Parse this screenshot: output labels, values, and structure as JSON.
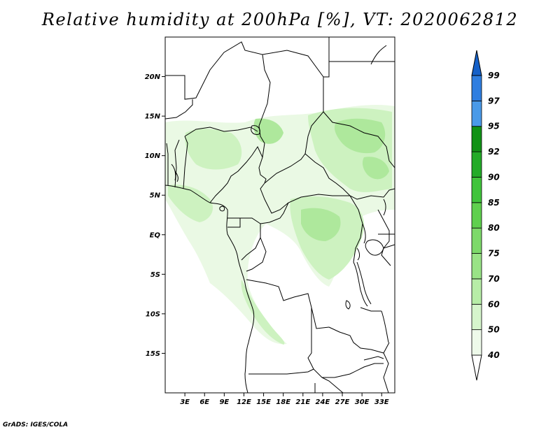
{
  "title": "Relative humidity at 200hPa [%], VT: 2020062812",
  "credit": "GrADS: IGES/COLA",
  "map": {
    "lon_range": [
      0,
      35
    ],
    "lat_range": [
      -20,
      25
    ],
    "lat_ticks": [
      {
        "value": 20,
        "label": "20N"
      },
      {
        "value": 15,
        "label": "15N"
      },
      {
        "value": 10,
        "label": "10N"
      },
      {
        "value": 5,
        "label": "5N"
      },
      {
        "value": 0,
        "label": "EQ"
      },
      {
        "value": -5,
        "label": "5S"
      },
      {
        "value": -10,
        "label": "10S"
      },
      {
        "value": -15,
        "label": "15S"
      }
    ],
    "lon_ticks": [
      {
        "value": 3,
        "label": "3E"
      },
      {
        "value": 6,
        "label": "6E"
      },
      {
        "value": 9,
        "label": "9E"
      },
      {
        "value": 12,
        "label": "12E"
      },
      {
        "value": 15,
        "label": "15E"
      },
      {
        "value": 18,
        "label": "18E"
      },
      {
        "value": 21,
        "label": "21E"
      },
      {
        "value": 24,
        "label": "24E"
      },
      {
        "value": 27,
        "label": "27E"
      },
      {
        "value": 30,
        "label": "30E"
      },
      {
        "value": 33,
        "label": "33E"
      }
    ]
  },
  "colorbar": {
    "levels": [
      "40",
      "50",
      "60",
      "70",
      "75",
      "80",
      "85",
      "90",
      "92",
      "95",
      "97",
      "99"
    ],
    "colors": [
      "#eefaea",
      "#d6f5cc",
      "#b7eda7",
      "#99e386",
      "#7dd96a",
      "#5fd04e",
      "#40c43b",
      "#23ab28",
      "#119216",
      "#4a9ae8",
      "#2f7ee0",
      "#1560c8"
    ]
  },
  "humidity_colors": {
    "light": "#eaf9e4",
    "mid": "#cdf2c0",
    "strong": "#aee89c"
  }
}
